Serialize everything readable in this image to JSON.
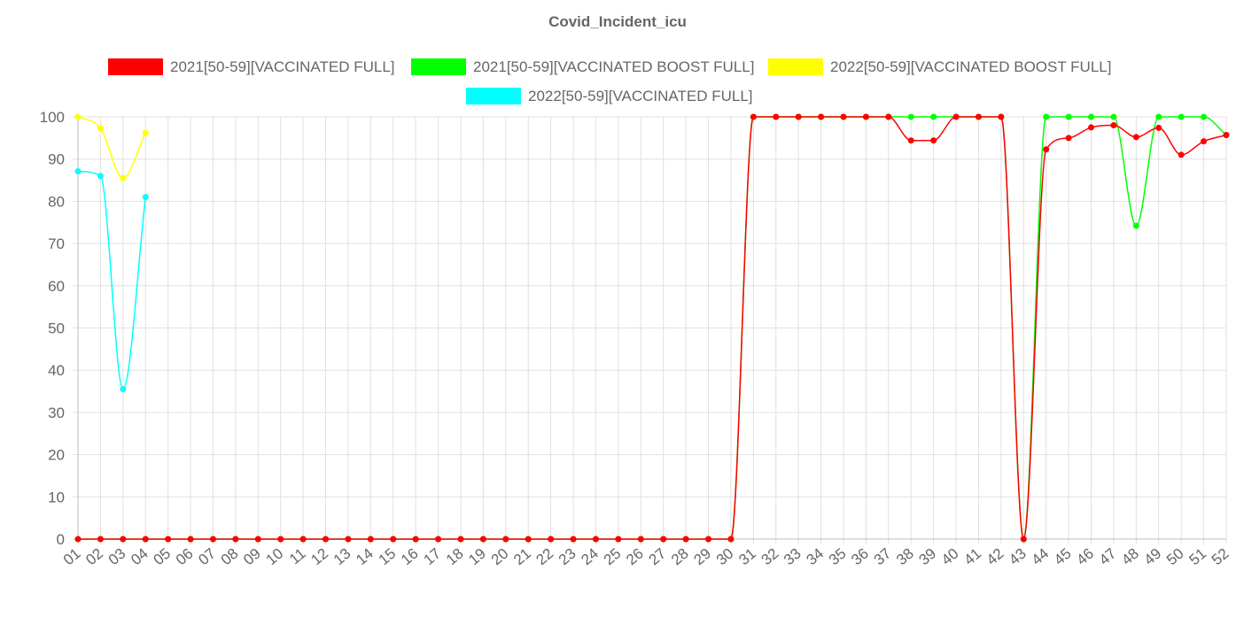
{
  "chart_data": {
    "type": "line",
    "title": "Covid_Incident_icu",
    "xlabel": "",
    "ylabel": "",
    "ylim": [
      0,
      100
    ],
    "yticks": [
      0,
      10,
      20,
      30,
      40,
      50,
      60,
      70,
      80,
      90,
      100
    ],
    "grid": true,
    "legend_position": "top",
    "categories": [
      "01",
      "02",
      "03",
      "04",
      "05",
      "06",
      "07",
      "08",
      "09",
      "10",
      "11",
      "12",
      "13",
      "14",
      "15",
      "16",
      "17",
      "18",
      "19",
      "20",
      "21",
      "22",
      "23",
      "24",
      "25",
      "26",
      "27",
      "28",
      "29",
      "30",
      "31",
      "32",
      "33",
      "34",
      "35",
      "36",
      "37",
      "38",
      "39",
      "40",
      "41",
      "42",
      "43",
      "44",
      "45",
      "46",
      "47",
      "48",
      "49",
      "50",
      "51",
      "52"
    ],
    "series": [
      {
        "name": "2021[50-59][VACCINATED FULL]",
        "color": "#ff0000",
        "values": [
          0,
          0,
          0,
          0,
          0,
          0,
          0,
          0,
          0,
          0,
          0,
          0,
          0,
          0,
          0,
          0,
          0,
          0,
          0,
          0,
          0,
          0,
          0,
          0,
          0,
          0,
          0,
          0,
          0,
          0,
          100,
          100,
          100,
          100,
          100,
          100,
          100,
          94.4,
          94.4,
          100,
          100,
          100,
          0,
          92.3,
          95,
          97.5,
          98,
          95.2,
          97.4,
          91,
          94.2,
          95.7
        ]
      },
      {
        "name": "2021[50-59][VACCINATED BOOST FULL]",
        "color": "#00ff00",
        "values": [
          0,
          0,
          0,
          0,
          0,
          0,
          0,
          0,
          0,
          0,
          0,
          0,
          0,
          0,
          0,
          0,
          0,
          0,
          0,
          0,
          0,
          0,
          0,
          0,
          0,
          0,
          0,
          0,
          0,
          0,
          100,
          100,
          100,
          100,
          100,
          100,
          100,
          100,
          100,
          100,
          100,
          100,
          0,
          100,
          100,
          100,
          100,
          74.2,
          100,
          100,
          100,
          95.7
        ]
      },
      {
        "name": "2022[50-59][VACCINATED BOOST FULL]",
        "color": "#ffff00",
        "values": [
          100,
          97.3,
          85.5,
          96.2,
          null,
          null,
          null,
          null,
          null,
          null,
          null,
          null,
          null,
          null,
          null,
          null,
          null,
          null,
          null,
          null,
          null,
          null,
          null,
          null,
          null,
          null,
          null,
          null,
          null,
          null,
          null,
          null,
          null,
          null,
          null,
          null,
          null,
          null,
          null,
          null,
          null,
          null,
          null,
          null,
          null,
          null,
          null,
          null,
          null,
          null,
          null,
          null
        ]
      },
      {
        "name": "2022[50-59][VACCINATED FULL]",
        "color": "#00ffff",
        "values": [
          87.1,
          86,
          35.5,
          81,
          null,
          null,
          null,
          null,
          null,
          null,
          null,
          null,
          null,
          null,
          null,
          null,
          null,
          null,
          null,
          null,
          null,
          null,
          null,
          null,
          null,
          null,
          null,
          null,
          null,
          null,
          null,
          null,
          null,
          null,
          null,
          null,
          null,
          null,
          null,
          null,
          null,
          null,
          null,
          null,
          null,
          null,
          null,
          null,
          null,
          null,
          null,
          null
        ]
      }
    ]
  }
}
